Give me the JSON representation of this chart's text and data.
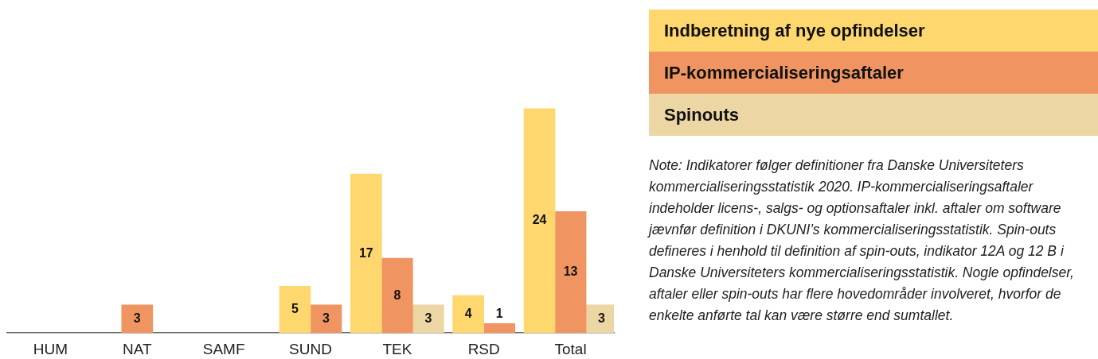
{
  "chart_data": {
    "type": "bar",
    "categories": [
      "HUM",
      "NAT",
      "SAMF",
      "SUND",
      "TEK",
      "RSD",
      "Total"
    ],
    "series": [
      {
        "name": "Indberetning af nye opfindelser",
        "color": "#fed76f",
        "values": [
          null,
          null,
          null,
          5,
          17,
          4,
          24
        ]
      },
      {
        "name": "IP-kommercialiseringsaftaler",
        "color": "#f09562",
        "values": [
          null,
          3,
          null,
          3,
          8,
          1,
          13
        ]
      },
      {
        "name": "Spinouts",
        "color": "#ecd6a3",
        "values": [
          null,
          null,
          null,
          null,
          3,
          null,
          3
        ]
      }
    ],
    "data_labels": true,
    "legend": "top right",
    "tick_labels": "x",
    "annotations": [
      "Note: Indikatorer følger definitioner fra Danske Universiteters kommercialiseringsstatistik 2020. IP-kommercialiseringsaftaler indeholder licens-, salgs- og optionsaftaler inkl. aftaler om software jævnfør definition i DKUNI’s kommercialiseringsstatistik. Spin-outs defineres i henhold til definition af spin-outs, indikator 12A og 12 B i Danske Universiteters kommercialiseringsstatistik. Nogle opfindelser, aftaler eller spin-outs har flere hovedområder involveret, hvorfor de enkelte anførte tal kan være større end sumtallet."
    ]
  }
}
